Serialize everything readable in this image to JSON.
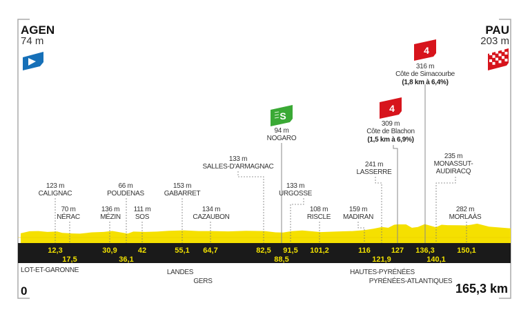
{
  "chart_data": {
    "type": "area",
    "title": "",
    "xlabel": "",
    "ylabel": "",
    "xlim": [
      0,
      165.3
    ],
    "x_unit": "km",
    "y_unit": "m",
    "start": {
      "name": "AGEN",
      "elevation_label": "74 m",
      "icon": "start-flag-icon"
    },
    "finish": {
      "name": "PAU",
      "elevation_label": "203 m",
      "icon": "checkered-finish-flag-icon"
    },
    "distance_start_label": "0",
    "distance_end_label": "165,3 km",
    "colors": {
      "profile": "#f5e000",
      "band": "#1a1a1a",
      "km_text": "#f2e200",
      "climb": "#d7141c",
      "sprint": "#3aa935",
      "start": "#1670b8"
    },
    "profile": {
      "x": [
        0,
        3,
        6,
        9,
        12.3,
        14,
        17.5,
        20,
        24,
        28,
        30.9,
        34,
        36.1,
        38,
        42,
        46,
        50,
        55.1,
        60,
        64.7,
        70,
        76,
        82.5,
        86,
        88.5,
        91.5,
        95,
        98,
        101.2,
        106,
        112,
        116,
        119,
        121.9,
        124,
        126,
        127,
        130,
        132,
        134,
        136.3,
        138,
        140.1,
        142,
        144,
        148,
        150.1,
        152,
        154,
        158,
        165.3
      ],
      "y": [
        74,
        130,
        135,
        110,
        123,
        85,
        70,
        65,
        100,
        110,
        136,
        95,
        66,
        120,
        111,
        120,
        140,
        153,
        135,
        134,
        125,
        140,
        133,
        100,
        94,
        133,
        150,
        130,
        108,
        120,
        135,
        159,
        195,
        241,
        220,
        300,
        309,
        309,
        220,
        240,
        316,
        280,
        235,
        300,
        290,
        285,
        282,
        300,
        330,
        250,
        203
      ]
    },
    "waypoints": [
      {
        "km": "12,3",
        "elevation": "123 m",
        "name": "CALIGNAC"
      },
      {
        "km": "17,5",
        "elevation": "70 m",
        "name": "NÉRAC"
      },
      {
        "km": "30,9",
        "elevation": "136 m",
        "name": "MÉZIN"
      },
      {
        "km": "36,1",
        "elevation": "66 m",
        "name": "POUDENAS"
      },
      {
        "km": "42",
        "elevation": "111 m",
        "name": "SOS"
      },
      {
        "km": "55,1",
        "elevation": "153 m",
        "name": "GABARRET"
      },
      {
        "km": "64,7",
        "elevation": "134 m",
        "name": "CAZAUBON"
      },
      {
        "km": "82,5",
        "elevation": "133 m",
        "name": "SALLES-D'ARMAGNAC"
      },
      {
        "km": "88,5",
        "elevation": "94 m",
        "name": "NOGARO",
        "icon": "intermediate-sprint-icon",
        "icon_text": "S"
      },
      {
        "km": "91,5",
        "elevation": "133 m",
        "name": "URGOSSE"
      },
      {
        "km": "101,2",
        "elevation": "108 m",
        "name": "RISCLE"
      },
      {
        "km": "116",
        "elevation": "159 m",
        "name": "MADIRAN"
      },
      {
        "km": "121,9",
        "elevation": "241 m",
        "name": "LASSERRE"
      },
      {
        "km": "127",
        "elevation": "309 m",
        "name": "Côte de Blachon",
        "detail": "(1,5 km à 6,9%)",
        "icon": "climb-category-icon",
        "icon_text": "4"
      },
      {
        "km": "136,3",
        "elevation": "316 m",
        "name": "Côte de Simacourbe",
        "detail": "(1,8 km à 6,4%)",
        "icon": "climb-category-icon",
        "icon_text": "4"
      },
      {
        "km": "140,1",
        "elevation": "235 m",
        "name": "MONASSUT-",
        "name2": "AUDIRACQ"
      },
      {
        "km": "150,1",
        "elevation": "282 m",
        "name": "MORLAÀS"
      }
    ],
    "regions": [
      "LOT-ET-GARONNE",
      "LANDES",
      "GERS",
      "HAUTES-PYRÉNÉES",
      "PYRÉNÉES-ATLANTIQUES"
    ]
  }
}
